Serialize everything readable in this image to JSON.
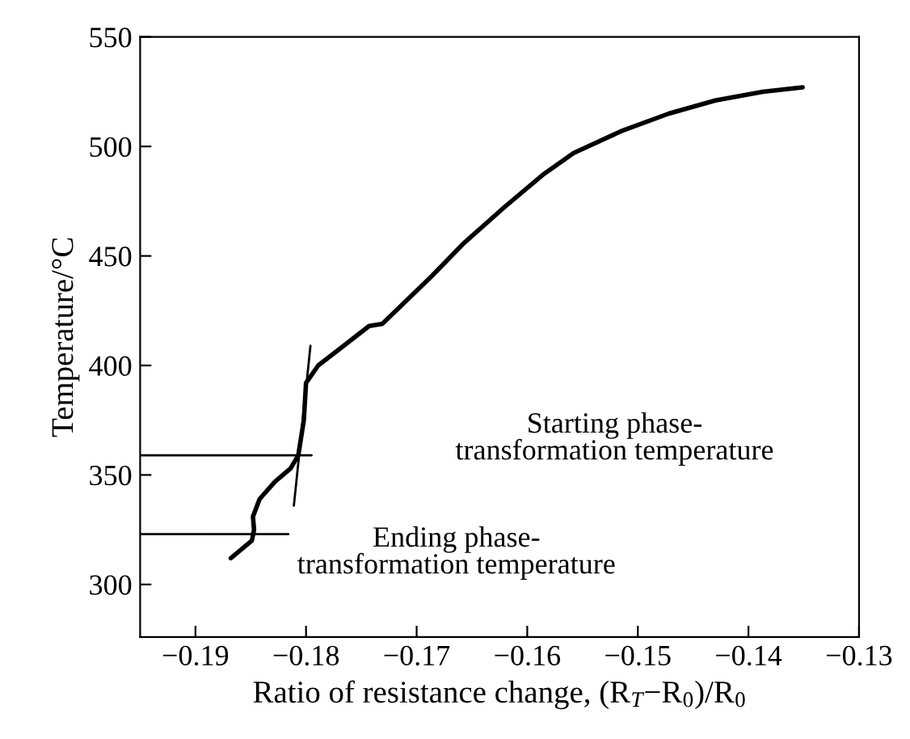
{
  "chart_data": {
    "type": "line",
    "xlabel": "Ratio of resistance change, (R$_{T}$−R$_{0}$)/R$_{0}$",
    "ylabel": "Temperature/°C",
    "xlim": [
      -0.195,
      -0.13
    ],
    "xticks": [
      -0.19,
      -0.18,
      -0.17,
      -0.16,
      -0.15,
      -0.14,
      -0.13
    ],
    "ylim": [
      276,
      550
    ],
    "yticks": [
      300,
      350,
      400,
      450,
      500,
      550
    ],
    "grid": false,
    "legend": false,
    "marker": "none",
    "series": [
      {
        "color": "#000000",
        "line_style": "solid",
        "x": [
          -0.1868,
          -0.1849,
          -0.1847,
          -0.1848,
          -0.1842,
          -0.1828,
          -0.1814,
          -0.1807,
          -0.1802,
          -0.18,
          -0.1789,
          -0.1771,
          -0.1743,
          -0.1731,
          -0.1686,
          -0.1657,
          -0.1619,
          -0.1586,
          -0.1558,
          -0.1515,
          -0.1472,
          -0.143,
          -0.1387,
          -0.1351
        ],
        "values": [
          312,
          320,
          325,
          331,
          339,
          347,
          353,
          359,
          375,
          392,
          400,
          407,
          418,
          419,
          441,
          456,
          473,
          487,
          497,
          507,
          515,
          521,
          525,
          527
        ]
      },
      {
        "color": "#000000",
        "line_style": "solid",
        "x": [
          -0.195,
          -0.1795
        ],
        "values": [
          359,
          359
        ]
      },
      {
        "color": "#000000",
        "line_style": "solid",
        "x": [
          -0.195,
          -0.1816
        ],
        "values": [
          323,
          323
        ]
      },
      {
        "color": "#000000",
        "line_style": "solid",
        "x": [
          -0.1811,
          -0.1796
        ],
        "values": [
          336,
          409
        ]
      }
    ],
    "annotations": [
      "Starting phase-\ntransformation temperature",
      "Ending phase-\ntransformation temperature"
    ]
  }
}
